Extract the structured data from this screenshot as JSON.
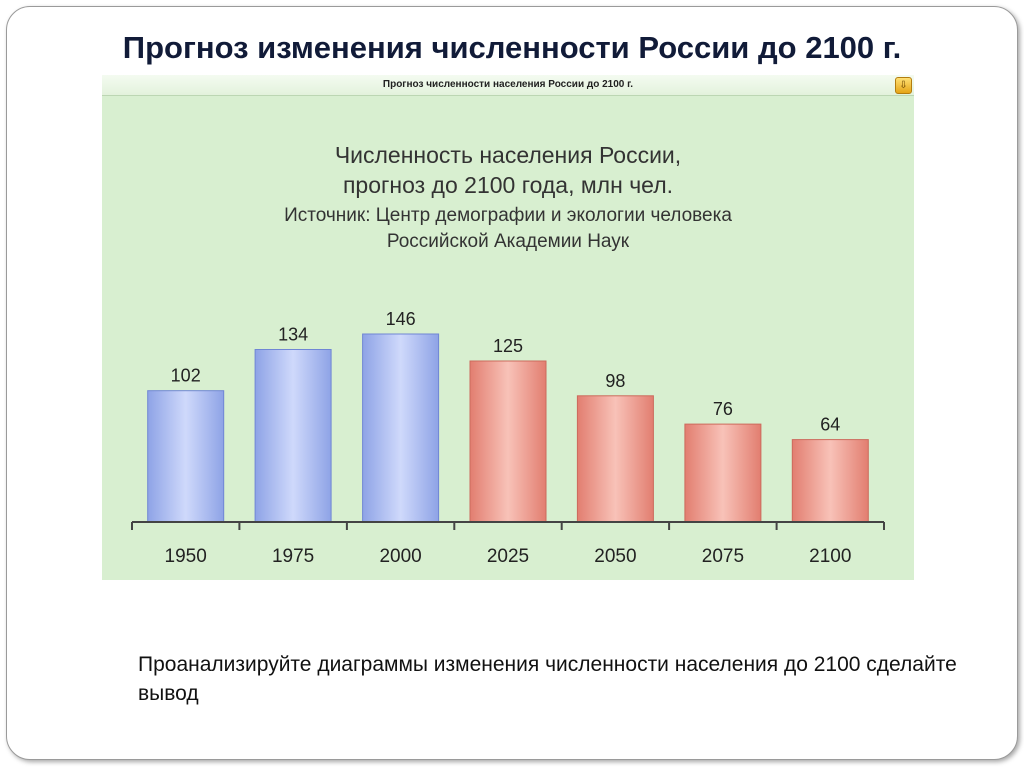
{
  "slide": {
    "title": "Прогноз изменения численности России до 2100 г.",
    "footnote": "Проанализируйте диаграммы изменения численности населения до 2100 сделайте вывод"
  },
  "panel": {
    "header_title": "Прогноз численности населения России до 2100 г.",
    "icon": "export-icon"
  },
  "colors": {
    "background": "#d8efd0",
    "historical": "#aebef0",
    "forecast": "#f0a497"
  },
  "chart_data": {
    "type": "bar",
    "title_lines": [
      "Численность населения России,",
      "прогноз до 2100 года, млн чел."
    ],
    "subtitle_lines": [
      "Источник: Центр демографии и экологии человека",
      "Российской Академии Наук"
    ],
    "categories": [
      "1950",
      "1975",
      "2000",
      "2025",
      "2050",
      "2075",
      "2100"
    ],
    "values": [
      102,
      134,
      146,
      125,
      98,
      76,
      64
    ],
    "kind": [
      "historical",
      "historical",
      "historical",
      "forecast",
      "forecast",
      "forecast",
      "forecast"
    ],
    "ylim": [
      0,
      146
    ],
    "grid": false,
    "legend": "none"
  }
}
